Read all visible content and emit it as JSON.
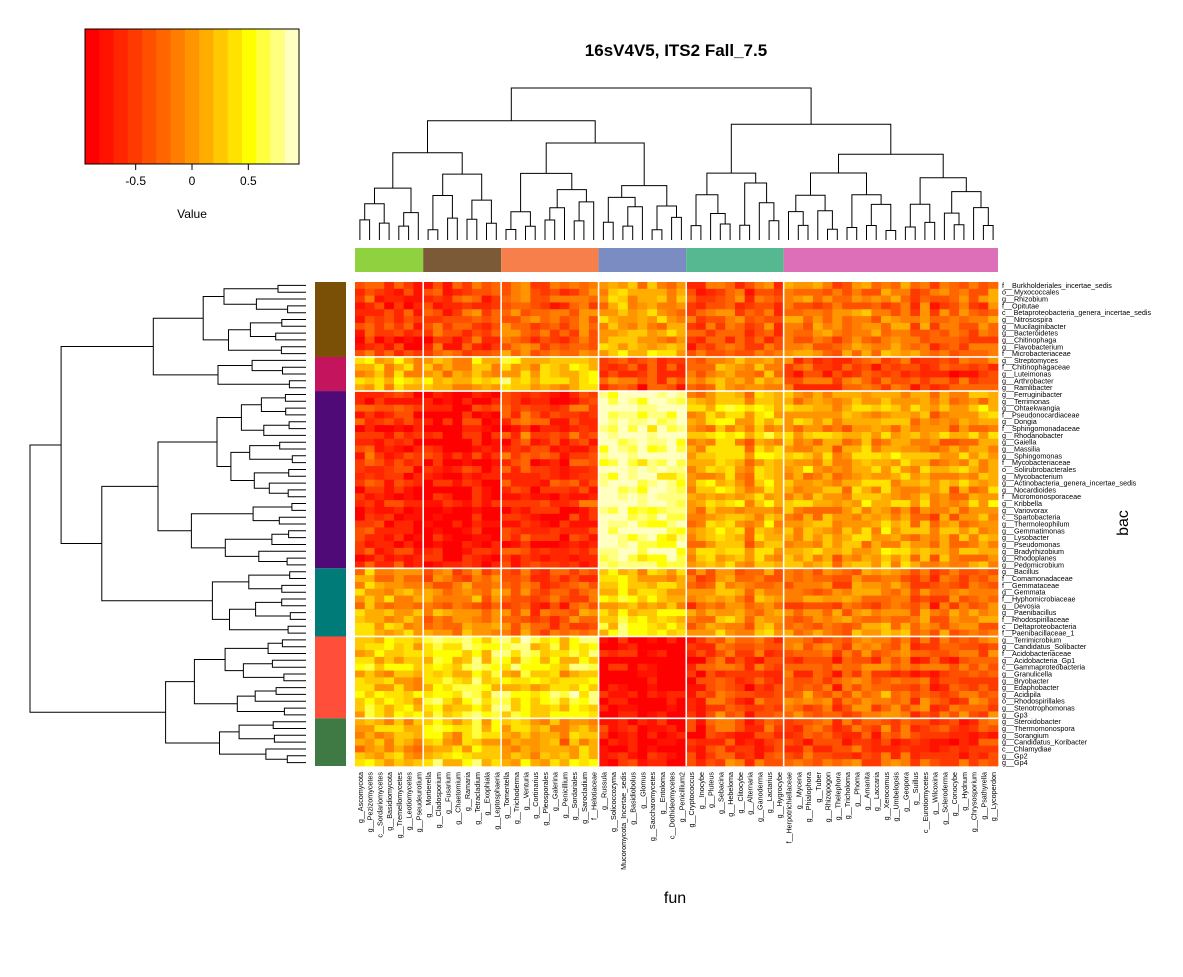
{
  "chart_data": {
    "type": "heatmap",
    "title": "16sV4V5, ITS2 Fall_7.5",
    "xlabel": "fun",
    "ylabel": "bac",
    "legend": {
      "title": "Value",
      "ticks": [
        "-0.5",
        "0",
        "0.5"
      ],
      "tick_values": [
        -0.5,
        0,
        0.5
      ],
      "range": [
        -0.95,
        0.95
      ],
      "placement": "top-left",
      "colors": [
        "#ff0000",
        "#ff1200",
        "#ff2600",
        "#ff3a00",
        "#ff5000",
        "#ff6600",
        "#ff7e00",
        "#ff9600",
        "#ffae00",
        "#ffc800",
        "#ffe200",
        "#ffff00",
        "#ffff40",
        "#ffff80",
        "#ffffbf"
      ]
    },
    "column_clusters": [
      {
        "color": "#8fd13f",
        "count": 7
      },
      {
        "color": "#7b5a37",
        "count": 8
      },
      {
        "color": "#f77f4b",
        "count": 10
      },
      {
        "color": "#7a8cc2",
        "count": 9
      },
      {
        "color": "#55b891",
        "count": 10
      },
      {
        "color": "#dc6fb8",
        "count": 22
      }
    ],
    "row_clusters": [
      {
        "color": "#7a5006",
        "count": 11
      },
      {
        "color": "#c4145e",
        "count": 5
      },
      {
        "color": "#4f0a77",
        "count": 26
      },
      {
        "color": "#007b78",
        "count": 10
      },
      {
        "color": "#ff4f3a",
        "count": 12
      },
      {
        "color": "#3f7a45",
        "count": 7
      }
    ],
    "block_means": [
      [
        -0.55,
        -0.4,
        -0.25,
        0.1,
        -0.35,
        -0.2
      ],
      [
        0.2,
        0.15,
        0.3,
        -0.4,
        0.0,
        -0.4
      ],
      [
        -0.65,
        -0.75,
        -0.55,
        0.8,
        0.15,
        0.05
      ],
      [
        0.05,
        -0.1,
        -0.35,
        0.3,
        -0.1,
        -0.2
      ],
      [
        0.25,
        0.5,
        0.45,
        -0.85,
        -0.45,
        -0.3
      ],
      [
        0.1,
        0.3,
        0.1,
        -0.75,
        -0.5,
        -0.45
      ]
    ],
    "columns": [
      "g__Ascomycota",
      "g__Pezizomycetes",
      "c__Sordariomycetes",
      "g__Basidiomycota",
      "g__Tremellomycetes",
      "g__Leotiomycetes",
      "g__Pseudeurotium",
      "g__Mortierella",
      "g__Cladosporium",
      "g__Fusarium",
      "g__Chaetomium",
      "g__Ramaria",
      "g__Tetracladium",
      "g__Exophiala",
      "g__Leptosphaeria",
      "g__Tomentella",
      "g__Trichoderma",
      "g__Venturia",
      "g__Cortinarius",
      "g__Pleosporales",
      "g__Galerina",
      "g__Penicillium",
      "g__Sordariales",
      "g__Sarocladium",
      "f__Helotiaceae",
      "g__Russula",
      "g__Solicoccozyma",
      "Mucoromycota_Incertae_sedis",
      "g__Basidiobolus",
      "g__Glomus",
      "g__Saccharomycetes",
      "g__Entoloma",
      "c__Dothideomycetes",
      "g__Penicillium2",
      "g__Cryptococcus",
      "g__Inocybe",
      "g__Pluteus",
      "g__Sebacina",
      "g__Hebeloma",
      "g__Clitocybe",
      "g__Alternaria",
      "g__Ganoderma",
      "g__Lactarius",
      "g__Hygrocybe",
      "f__Herpotrichiellaceae",
      "g__Mycena",
      "g__Phialophora",
      "g__Tuber",
      "g__Rhizopogon",
      "g__Thelephora",
      "g__Tricholoma",
      "g__Phoma",
      "g__Amanita",
      "g__Laccaria",
      "g__Xerocomus",
      "g__Umbelopsis",
      "g__Geopora",
      "g__Suillus",
      "c__Eurotiomycetes",
      "g__Wilcoxina",
      "g__Scleroderma",
      "g__Conocybe",
      "g__Hydnum",
      "g__Chrysosporium",
      "g__Psathyrella",
      "g__Lycoperdon"
    ],
    "rows": [
      "f__Burkholderiales_incertae_sedis",
      "o__Myxococcales",
      "g__Rhizobium",
      "f__Opitutae",
      "c__Betaproteobacteria_genera_incertae_sedis",
      "g__Nitrosospira",
      "g__Mucilaginibacter",
      "g__Bacteroidetes",
      "g__Chitinophaga",
      "g__Flavobacterium",
      "f__Microbacteriaceae",
      "g__Streptomyces",
      "f__Chitinophagaceae",
      "g__Luteimonas",
      "g__Arthrobacter",
      "g__Ramlibacter",
      "g__Ferruginibacter",
      "g__Terrimonas",
      "g__Ohtaekwangia",
      "f__Pseudonocardiaceae",
      "g__Dongia",
      "f__Sphingomonadaceae",
      "g__Rhodanobacter",
      "g__Gaiella",
      "g__Massilia",
      "g__Sphingomonas",
      "f__Mycobacteriaceae",
      "o__Solirubrobacterales",
      "g__Mycobacterium",
      "g__Actinobacteria_genera_incertae_sedis",
      "g__Nocardioides",
      "f__Micromonosporaceae",
      "g__Kribbella",
      "g__Variovorax",
      "c__Spartobacteria",
      "g__Thermoleophilum",
      "g__Gemmatimonas",
      "g__Lysobacter",
      "g__Pseudomonas",
      "g__Bradyrhizobium",
      "g__Rhodoplanes",
      "g__Pedomicrobium",
      "g__Bacillus",
      "f__Comamonadaceae",
      "f__Gemmataceae",
      "g__Gemmata",
      "f__Hyphomicrobiaceae",
      "g__Devosia",
      "g__Paenibacillus",
      "f__Rhodospirillaceae",
      "c__Deltaproteobacteria",
      "f__Paenibacillaceae_1",
      "g__Terrimicrobium",
      "g__Candidatus_Solibacter",
      "f__Acidobacteriaceae",
      "g__Acidobacteria_Gp1",
      "c__Gammaproteobacteria",
      "g__Granulicella",
      "g__Bryobacter",
      "g__Edaphobacter",
      "g__Acidipila",
      "o__Rhodospirillales",
      "g__Stenotrophomonas",
      "g__Gp3",
      "g__Steroidobacter",
      "g__Thermomonospora",
      "g__Sorangium",
      "g__Candidatus_Koribacter",
      "c__Chlamydiae",
      "g__Gp2",
      "g__Gp4"
    ]
  }
}
